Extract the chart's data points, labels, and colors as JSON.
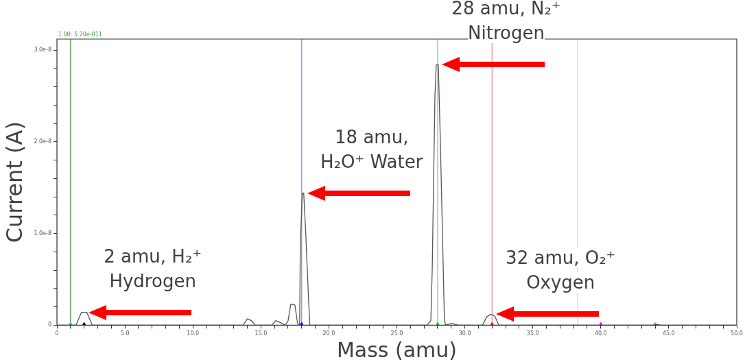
{
  "chart_data": {
    "type": "line",
    "xlabel": "Mass (amu)",
    "ylabel": "Current (A)",
    "xlim": [
      0,
      50
    ],
    "xticks": [
      0,
      {
        "value": 1,
        "label": null
      },
      {
        "value": 2,
        "label": null
      },
      {
        "value": 3,
        "label": null
      },
      {
        "value": 4,
        "label": null
      },
      {
        "value": 5,
        "label": "5.0"
      },
      {
        "value": 6,
        "label": null
      },
      {
        "value": 7,
        "label": null
      },
      {
        "value": 8,
        "label": null
      },
      {
        "value": 9,
        "label": null
      },
      {
        "value": 10,
        "label": "10.0"
      },
      {
        "value": 11,
        "label": null
      },
      {
        "value": 12,
        "label": null
      },
      {
        "value": 13,
        "label": null
      },
      {
        "value": 14,
        "label": null
      },
      {
        "value": 15,
        "label": "15.0"
      },
      {
        "value": 16,
        "label": null
      },
      {
        "value": 17,
        "label": null
      },
      {
        "value": 18,
        "label": null
      },
      {
        "value": 19,
        "label": null
      },
      {
        "value": 20,
        "label": "20.0"
      },
      {
        "value": 21,
        "label": null
      },
      {
        "value": 22,
        "label": null
      },
      {
        "value": 23,
        "label": null
      },
      {
        "value": 24,
        "label": null
      },
      {
        "value": 25,
        "label": "25.0"
      },
      {
        "value": 26,
        "label": null
      },
      {
        "value": 27,
        "label": null
      },
      {
        "value": 28,
        "label": null
      },
      {
        "value": 29,
        "label": null
      },
      {
        "value": 30,
        "label": "30.0"
      },
      {
        "value": 31,
        "label": null
      },
      {
        "value": 32,
        "label": null
      },
      {
        "value": 33,
        "label": null
      },
      {
        "value": 34,
        "label": null
      },
      {
        "value": 35,
        "label": "35.0"
      },
      {
        "value": 36,
        "label": null
      },
      {
        "value": 37,
        "label": null
      },
      {
        "value": 38,
        "label": null
      },
      {
        "value": 39,
        "label": null
      },
      {
        "value": 40,
        "label": "40.0"
      },
      {
        "value": 41,
        "label": null
      },
      {
        "value": 42,
        "label": null
      },
      {
        "value": 43,
        "label": null
      },
      {
        "value": 44,
        "label": null
      },
      {
        "value": 45,
        "label": "45.0"
      },
      {
        "value": 46,
        "label": null
      },
      {
        "value": 47,
        "label": null
      },
      {
        "value": 48,
        "label": null
      },
      {
        "value": 49,
        "label": null
      },
      {
        "value": 50,
        "label": "50.0"
      }
    ],
    "ylim": [
      0,
      3.12e-08
    ],
    "yticks": [
      0,
      {
        "value": 2e-09,
        "label": null
      },
      {
        "value": 4e-09,
        "label": null
      },
      {
        "value": 6e-09,
        "label": null
      },
      {
        "value": 8e-09,
        "label": null
      },
      {
        "value": 1e-08,
        "label": "1.0e-8"
      },
      {
        "value": 1.2e-08,
        "label": null
      },
      {
        "value": 1.4e-08,
        "label": null
      },
      {
        "value": 1.6e-08,
        "label": null
      },
      {
        "value": 1.8e-08,
        "label": null
      },
      {
        "value": 2e-08,
        "label": "2.0e-8"
      },
      {
        "value": 2.2e-08,
        "label": null
      },
      {
        "value": 2.4e-08,
        "label": null
      },
      {
        "value": 2.6e-08,
        "label": null
      },
      {
        "value": 2.8e-08,
        "label": null
      },
      {
        "value": 3e-08,
        "label": "3.0e-8"
      }
    ],
    "grid": false,
    "legend": false,
    "marker": "none",
    "line_style": "solid",
    "series": [
      {
        "color": "#555555",
        "x": [
          0,
          1.4,
          1.6,
          1.8,
          2.2,
          2.4,
          2.6,
          13.7,
          14.0,
          14.3,
          14.6,
          15.8,
          16.1,
          16.4,
          16.8,
          17.0,
          17.2,
          17.5,
          17.7,
          17.85,
          17.9,
          18.05,
          18.15,
          18.3,
          18.5,
          18.6,
          27.2,
          27.5,
          27.6,
          27.8,
          27.9,
          28.05,
          28.2,
          28.5,
          28.6,
          29.0,
          29.5,
          31.3,
          31.6,
          31.9,
          32.2,
          32.5,
          43.8,
          44.1,
          44.4,
          50
        ],
        "values": [
          0,
          0,
          7e-10,
          1.4e-09,
          1.4e-09,
          7e-10,
          0,
          0,
          7e-10,
          5e-10,
          0,
          0,
          5e-10,
          3e-10,
          0,
          5e-10,
          2.3e-09,
          2.2e-09,
          2e-10,
          0,
          9e-09,
          1.44e-08,
          1.44e-08,
          1e-08,
          3e-09,
          0,
          0,
          5e-10,
          6e-09,
          2.5e-08,
          2.84e-08,
          2.84e-08,
          2e-08,
          5e-10,
          0,
          2e-10,
          0,
          0,
          9e-10,
          1.2e-09,
          1e-09,
          0,
          0,
          1e-10,
          0,
          0
        ]
      },
      {
        "type": "scatter",
        "marker": "triangle",
        "x": [
          1,
          2,
          18,
          28,
          32,
          40,
          44
        ],
        "values": [
          0,
          0,
          0,
          0,
          0,
          0,
          0
        ],
        "colors": [
          "#4caf50",
          "#000000",
          "#0000ff",
          "#00cc00",
          "#ff0000",
          "#ff00ff",
          "#00e5e5"
        ]
      }
    ],
    "ref_lines": [
      {
        "axis": "x",
        "value": 1,
        "label": "1.00: 5.70e-011",
        "color": "#3a9a3a"
      },
      {
        "axis": "x",
        "value": 18,
        "color": "#8080ff"
      },
      {
        "axis": "x",
        "value": 28,
        "color": "#66dd66"
      },
      {
        "axis": "x",
        "value": 32,
        "color": "#ff8080"
      },
      {
        "axis": "x",
        "value": 38.3,
        "color": "#d0d0d0"
      }
    ],
    "annotations": [
      {
        "text": "2 amu, H₂⁺\nHydrogen",
        "x": 2,
        "y": 1.4e-09
      },
      {
        "text": "18 amu,\nH₂O⁺ Water",
        "x": 18.1,
        "y": 1.44e-08
      },
      {
        "text": "28 amu, N₂⁺\nNitrogen",
        "x": 28,
        "y": 2.84e-08
      },
      {
        "text": "32 amu, O₂⁺\nOxygen",
        "x": 32,
        "y": 1.2e-09
      }
    ]
  }
}
